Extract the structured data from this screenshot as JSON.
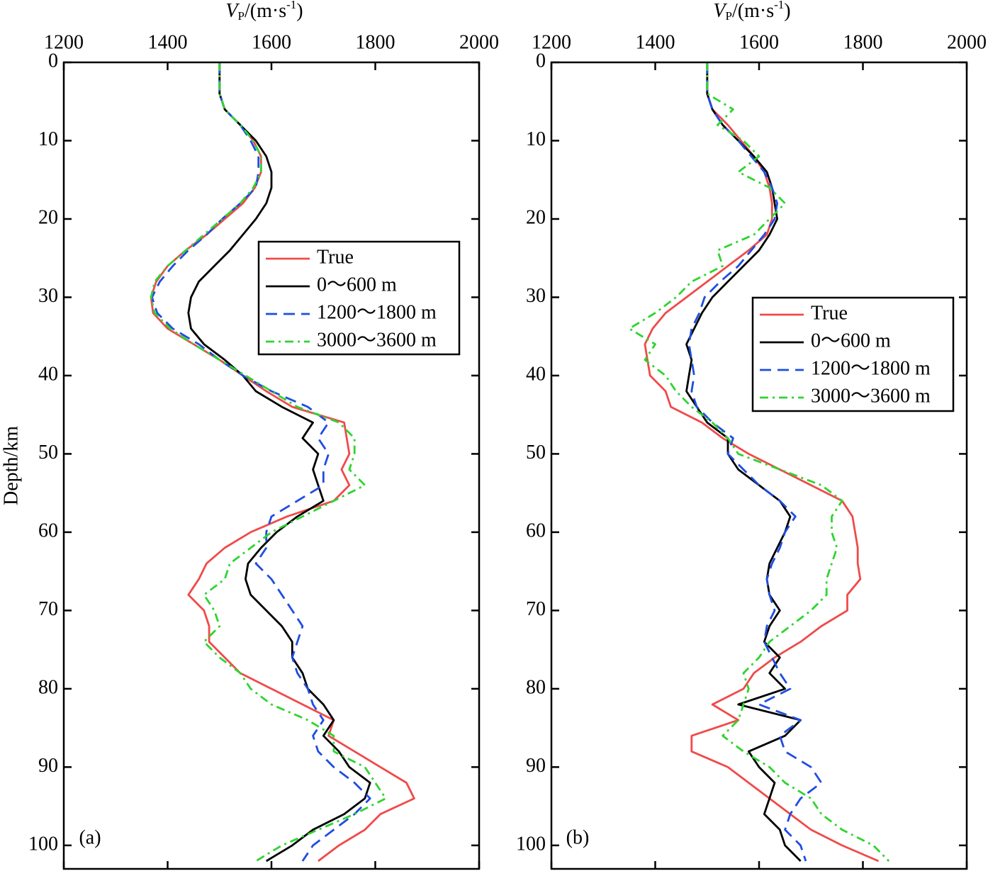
{
  "chart_data": [
    {
      "type": "line",
      "panel_label": "(a)",
      "xlabel": [
        "V",
        "P",
        "/(m·s",
        "-1",
        ")"
      ],
      "ylabel": "Depth/km",
      "xlim": [
        1200,
        2000
      ],
      "ylim": [
        0,
        103
      ],
      "xticks": [
        1200,
        1400,
        1600,
        1800,
        2000
      ],
      "yticks": [
        0,
        10,
        20,
        30,
        40,
        50,
        60,
        70,
        80,
        90,
        100
      ],
      "y_inverted": true,
      "depth": [
        0,
        2,
        4,
        6,
        8,
        10,
        12,
        14,
        16,
        18,
        20,
        22,
        24,
        26,
        28,
        30,
        32,
        34,
        36,
        38,
        40,
        42,
        44,
        46,
        48,
        50,
        52,
        54,
        56,
        58,
        60,
        62,
        64,
        66,
        68,
        70,
        72,
        74,
        76,
        78,
        80,
        82,
        84,
        86,
        88,
        90,
        92,
        94,
        96,
        98,
        100,
        102
      ],
      "series": [
        {
          "name": "True",
          "color": "#f04a4a",
          "dash": "none",
          "values": [
            1500,
            1500,
            1500,
            1510,
            1540,
            1565,
            1580,
            1580,
            1568,
            1545,
            1510,
            1475,
            1435,
            1400,
            1378,
            1368,
            1372,
            1400,
            1450,
            1500,
            1545,
            1590,
            1640,
            1740,
            1745,
            1750,
            1735,
            1750,
            1720,
            1630,
            1560,
            1510,
            1475,
            1460,
            1440,
            1470,
            1480,
            1480,
            1510,
            1540,
            1600,
            1660,
            1720,
            1710,
            1760,
            1810,
            1860,
            1875,
            1810,
            1780,
            1730,
            1690
          ]
        },
        {
          "name": "0～600 m",
          "color": "#000000",
          "dash": "none",
          "values": [
            1500,
            1500,
            1500,
            1510,
            1540,
            1570,
            1590,
            1600,
            1600,
            1590,
            1570,
            1545,
            1520,
            1490,
            1460,
            1445,
            1440,
            1445,
            1470,
            1510,
            1545,
            1570,
            1620,
            1680,
            1660,
            1690,
            1680,
            1690,
            1700,
            1650,
            1610,
            1580,
            1555,
            1550,
            1560,
            1590,
            1620,
            1640,
            1640,
            1660,
            1670,
            1700,
            1720,
            1700,
            1730,
            1750,
            1790,
            1780,
            1740,
            1680,
            1640,
            1590
          ]
        },
        {
          "name": "1200～1800 m",
          "color": "#1f4de0",
          "dash": "16 9",
          "values": [
            1500,
            1500,
            1500,
            1510,
            1540,
            1560,
            1575,
            1575,
            1570,
            1540,
            1505,
            1475,
            1440,
            1410,
            1385,
            1370,
            1380,
            1410,
            1460,
            1500,
            1545,
            1600,
            1670,
            1710,
            1690,
            1710,
            1700,
            1700,
            1650,
            1600,
            1590,
            1590,
            1570,
            1600,
            1620,
            1640,
            1660,
            1650,
            1640,
            1650,
            1670,
            1680,
            1700,
            1680,
            1690,
            1720,
            1760,
            1790,
            1760,
            1720,
            1680,
            1660
          ]
        },
        {
          "name": "3000～3600 m",
          "color": "#2fd42f",
          "dash": "12 6 3 6",
          "values": [
            1500,
            1500,
            1500,
            1510,
            1540,
            1565,
            1580,
            1580,
            1565,
            1540,
            1505,
            1470,
            1435,
            1400,
            1375,
            1368,
            1375,
            1405,
            1450,
            1500,
            1550,
            1600,
            1650,
            1730,
            1760,
            1760,
            1750,
            1780,
            1720,
            1660,
            1600,
            1560,
            1520,
            1510,
            1470,
            1490,
            1500,
            1470,
            1500,
            1540,
            1560,
            1600,
            1670,
            1720,
            1720,
            1780,
            1800,
            1820,
            1760,
            1690,
            1620,
            1570
          ]
        }
      ]
    },
    {
      "type": "line",
      "panel_label": "(b)",
      "xlabel": [
        "V",
        "P",
        "/(m·s",
        "-1",
        ")"
      ],
      "xlim": [
        1200,
        2000
      ],
      "ylim": [
        0,
        103
      ],
      "xticks": [
        1200,
        1400,
        1600,
        1800,
        2000
      ],
      "yticks": [
        0,
        10,
        20,
        30,
        40,
        50,
        60,
        70,
        80,
        90,
        100
      ],
      "y_inverted": true,
      "depth": [
        0,
        2,
        4,
        6,
        8,
        10,
        12,
        14,
        16,
        18,
        20,
        22,
        24,
        26,
        28,
        30,
        32,
        34,
        36,
        38,
        40,
        42,
        44,
        46,
        48,
        50,
        52,
        54,
        56,
        58,
        60,
        62,
        64,
        66,
        68,
        70,
        72,
        74,
        76,
        78,
        80,
        82,
        84,
        86,
        88,
        90,
        92,
        94,
        96,
        98,
        100,
        102
      ],
      "series": [
        {
          "name": "True",
          "color": "#f04a4a",
          "dash": "none",
          "values": [
            1500,
            1500,
            1500,
            1510,
            1540,
            1565,
            1590,
            1610,
            1620,
            1625,
            1625,
            1615,
            1580,
            1540,
            1500,
            1460,
            1420,
            1395,
            1380,
            1385,
            1390,
            1420,
            1430,
            1490,
            1530,
            1580,
            1640,
            1700,
            1760,
            1780,
            1785,
            1790,
            1790,
            1795,
            1770,
            1770,
            1720,
            1680,
            1630,
            1590,
            1570,
            1510,
            1560,
            1470,
            1470,
            1540,
            1580,
            1620,
            1660,
            1700,
            1760,
            1830
          ]
        },
        {
          "name": "0～600 m",
          "color": "#000000",
          "dash": "none",
          "values": [
            1500,
            1500,
            1500,
            1510,
            1530,
            1560,
            1590,
            1615,
            1625,
            1630,
            1635,
            1620,
            1600,
            1570,
            1540,
            1510,
            1490,
            1475,
            1460,
            1470,
            1465,
            1460,
            1480,
            1500,
            1540,
            1540,
            1560,
            1600,
            1640,
            1660,
            1650,
            1635,
            1620,
            1615,
            1620,
            1640,
            1620,
            1610,
            1640,
            1620,
            1650,
            1560,
            1680,
            1650,
            1580,
            1600,
            1630,
            1620,
            1610,
            1640,
            1650,
            1680
          ]
        },
        {
          "name": "1200～1800 m",
          "color": "#1f4de0",
          "dash": "16 9",
          "values": [
            1500,
            1500,
            1500,
            1510,
            1530,
            1560,
            1585,
            1610,
            1625,
            1635,
            1630,
            1610,
            1585,
            1560,
            1525,
            1495,
            1485,
            1470,
            1465,
            1470,
            1475,
            1470,
            1480,
            1510,
            1550,
            1540,
            1570,
            1600,
            1640,
            1670,
            1650,
            1640,
            1625,
            1615,
            1620,
            1630,
            1615,
            1610,
            1625,
            1640,
            1660,
            1600,
            1680,
            1640,
            1650,
            1700,
            1720,
            1680,
            1660,
            1650,
            1680,
            1690
          ]
        },
        {
          "name": "3000～3600 m",
          "color": "#2fd42f",
          "dash": "12 6 3 6",
          "values": [
            1500,
            1500,
            1500,
            1550,
            1520,
            1570,
            1600,
            1560,
            1620,
            1650,
            1620,
            1590,
            1520,
            1530,
            1470,
            1440,
            1400,
            1350,
            1400,
            1380,
            1420,
            1440,
            1470,
            1510,
            1540,
            1560,
            1640,
            1720,
            1760,
            1740,
            1740,
            1750,
            1740,
            1730,
            1730,
            1700,
            1660,
            1620,
            1600,
            1570,
            1580,
            1570,
            1560,
            1530,
            1570,
            1620,
            1650,
            1700,
            1720,
            1760,
            1820,
            1850
          ]
        }
      ]
    }
  ]
}
